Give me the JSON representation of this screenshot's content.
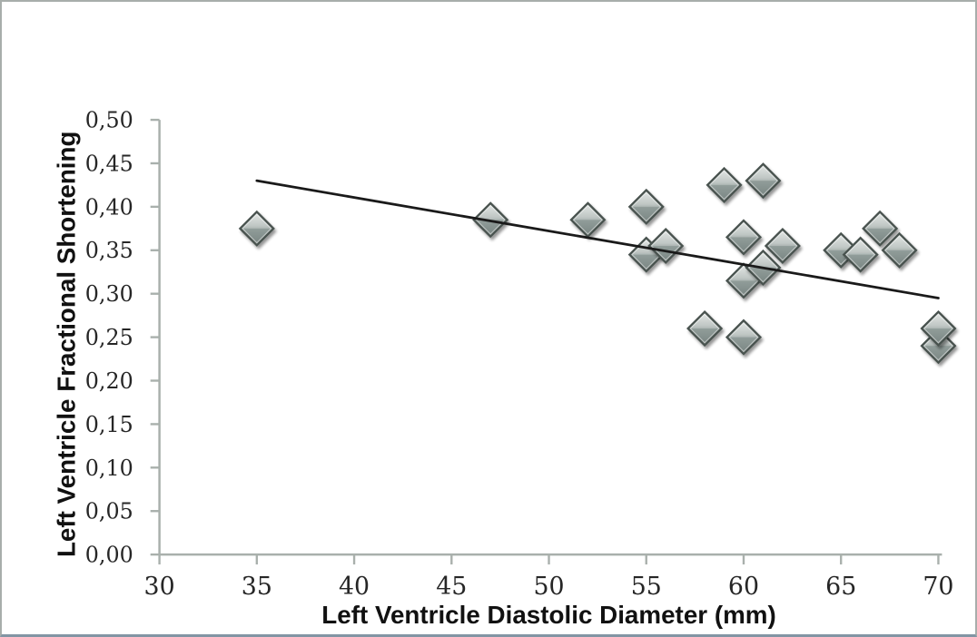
{
  "chart_data": {
    "type": "scatter",
    "title": "",
    "xlabel": "Left Ventricle Diastolic Diameter (mm)",
    "ylabel": "Left Ventricle Fractional Shortening",
    "xlim": [
      30,
      70
    ],
    "ylim": [
      0.0,
      0.5
    ],
    "x_ticks": [
      30,
      35,
      40,
      45,
      50,
      55,
      60,
      65,
      70
    ],
    "x_tick_labels": [
      "30",
      "35",
      "40",
      "45",
      "50",
      "55",
      "60",
      "65",
      "70"
    ],
    "y_ticks": [
      0.0,
      0.05,
      0.1,
      0.15,
      0.2,
      0.25,
      0.3,
      0.35,
      0.4,
      0.45,
      0.5
    ],
    "y_tick_labels": [
      "0,00",
      "0,05",
      "0,10",
      "0,15",
      "0,20",
      "0,25",
      "0,30",
      "0,35",
      "0,40",
      "0,45",
      "0,50"
    ],
    "decimal_separator": ",",
    "grid": false,
    "legend": "none",
    "marker_shape": "diamond",
    "points": [
      {
        "x": 35,
        "y": 0.375
      },
      {
        "x": 47,
        "y": 0.385
      },
      {
        "x": 52,
        "y": 0.385
      },
      {
        "x": 55,
        "y": 0.4
      },
      {
        "x": 55,
        "y": 0.345
      },
      {
        "x": 56,
        "y": 0.355
      },
      {
        "x": 58,
        "y": 0.26
      },
      {
        "x": 59,
        "y": 0.425
      },
      {
        "x": 60,
        "y": 0.365
      },
      {
        "x": 60,
        "y": 0.315
      },
      {
        "x": 60,
        "y": 0.25
      },
      {
        "x": 61,
        "y": 0.43
      },
      {
        "x": 61,
        "y": 0.33
      },
      {
        "x": 62,
        "y": 0.355
      },
      {
        "x": 65,
        "y": 0.35
      },
      {
        "x": 66,
        "y": 0.345
      },
      {
        "x": 67,
        "y": 0.375
      },
      {
        "x": 68,
        "y": 0.35
      },
      {
        "x": 70,
        "y": 0.24
      },
      {
        "x": 70,
        "y": 0.26
      }
    ],
    "trendline": {
      "x1": 35,
      "y1": 0.43,
      "x2": 70,
      "y2": 0.295
    },
    "colors": {
      "background": "#ffffff",
      "axis": "#a9b0ac",
      "tick_label": "#262626",
      "axis_title": "#111111",
      "trendline": "#1a1a1a",
      "marker_fill_light": "#dfe3e1",
      "marker_fill_mid": "#99a4a1",
      "marker_fill_dark": "#7e8a87",
      "marker_stroke": "#49524f",
      "frame_border": "#a8aeab",
      "frame_border_bottom": "#8295a4"
    }
  }
}
